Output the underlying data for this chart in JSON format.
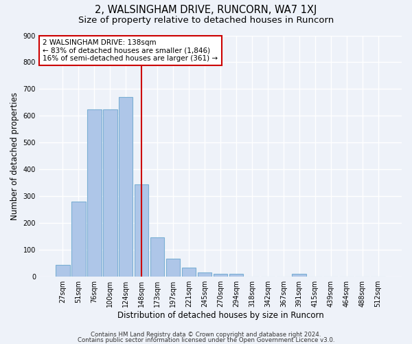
{
  "title": "2, WALSINGHAM DRIVE, RUNCORN, WA7 1XJ",
  "subtitle": "Size of property relative to detached houses in Runcorn",
  "xlabel": "Distribution of detached houses by size in Runcorn",
  "ylabel": "Number of detached properties",
  "categories": [
    "27sqm",
    "51sqm",
    "76sqm",
    "100sqm",
    "124sqm",
    "148sqm",
    "173sqm",
    "197sqm",
    "221sqm",
    "245sqm",
    "270sqm",
    "294sqm",
    "318sqm",
    "342sqm",
    "367sqm",
    "391sqm",
    "415sqm",
    "439sqm",
    "464sqm",
    "488sqm",
    "512sqm"
  ],
  "values": [
    45,
    280,
    623,
    623,
    670,
    345,
    148,
    67,
    33,
    15,
    10,
    10,
    0,
    0,
    0,
    10,
    0,
    0,
    0,
    0,
    0
  ],
  "bar_color": "#aec6e8",
  "bar_edgecolor": "#7aafd4",
  "vline_x": 5.0,
  "vline_color": "#cc0000",
  "annotation_text": "2 WALSINGHAM DRIVE: 138sqm\n← 83% of detached houses are smaller (1,846)\n16% of semi-detached houses are larger (361) →",
  "annotation_box_color": "#cc0000",
  "ylim": [
    0,
    900
  ],
  "yticks": [
    0,
    100,
    200,
    300,
    400,
    500,
    600,
    700,
    800,
    900
  ],
  "background_color": "#eef2f9",
  "grid_color": "#ffffff",
  "title_fontsize": 10.5,
  "subtitle_fontsize": 9.5,
  "tick_fontsize": 7,
  "ylabel_fontsize": 8.5,
  "xlabel_fontsize": 8.5,
  "annotation_fontsize": 7.5,
  "footer_line1": "Contains HM Land Registry data © Crown copyright and database right 2024.",
  "footer_line2": "Contains public sector information licensed under the Open Government Licence v3.0."
}
